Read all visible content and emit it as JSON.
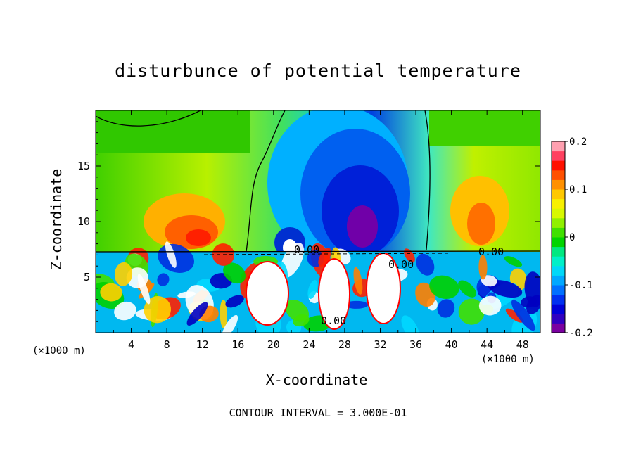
{
  "chart_data": {
    "type": "heatmap",
    "title": "disturbunce of potential temperature",
    "xlabel": "X-coordinate",
    "ylabel": "Z-coordinate",
    "x_unit_left": "(×1000 m)",
    "x_unit_right": "(×1000 m)",
    "footer": "CONTOUR INTERVAL = 3.000E-01",
    "xlim": [
      0,
      50
    ],
    "ylim": [
      0,
      20
    ],
    "xticks": [
      4,
      8,
      12,
      16,
      20,
      24,
      28,
      32,
      36,
      40,
      44,
      48
    ],
    "yticks": [
      5,
      10,
      15
    ],
    "colorbar": {
      "range": [
        -0.2,
        0.2
      ],
      "ticks": [
        "0.2",
        "0.1",
        "0",
        "-0.1",
        "-0.2"
      ],
      "tick_values": [
        0.2,
        0.1,
        0,
        -0.1,
        -0.2
      ],
      "colors": [
        "#7a00a0",
        "#3000c0",
        "#0000d8",
        "#0030f0",
        "#0070ff",
        "#00a8ff",
        "#00d8f8",
        "#00f0c8",
        "#00e880",
        "#00d400",
        "#40e000",
        "#90f000",
        "#d8f800",
        "#f8f000",
        "#ffc800",
        "#ff9000",
        "#ff5000",
        "#ff1000",
        "#ff4060",
        "#ffa0b0"
      ]
    },
    "contour_labels": [
      "0.00",
      "0.00",
      "0.00",
      "0.00"
    ]
  }
}
